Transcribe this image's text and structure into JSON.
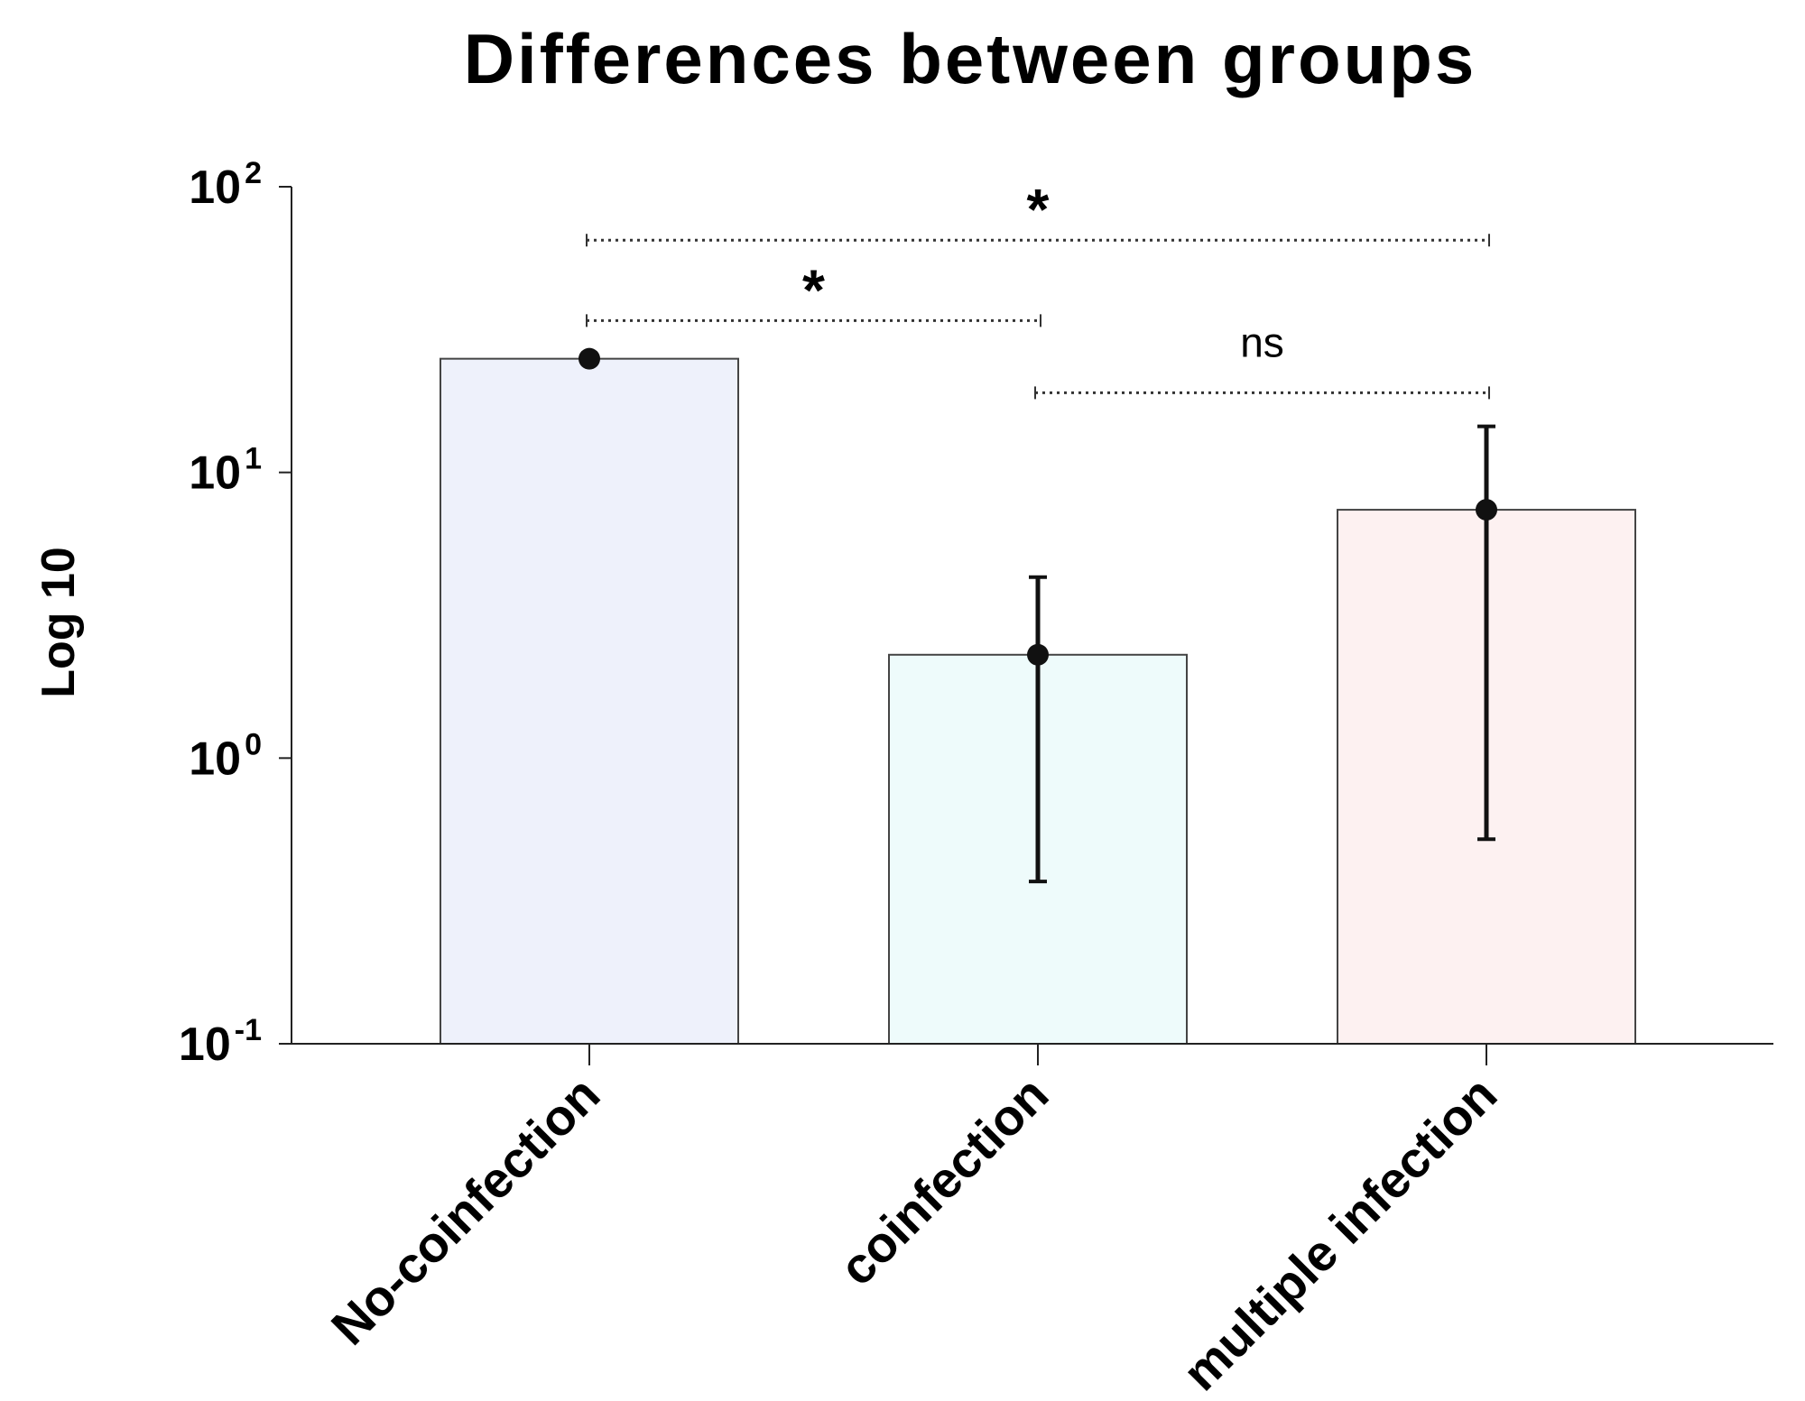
{
  "chart_data": {
    "type": "bar",
    "title": "Differences between groups",
    "ylabel": "Log 10",
    "xlabel": "",
    "yscale": "log",
    "ylim": [
      0.1,
      100
    ],
    "ytick_base": "10",
    "yticks": [
      {
        "value": 0.1,
        "exponent": "-1"
      },
      {
        "value": 1,
        "exponent": "0"
      },
      {
        "value": 10,
        "exponent": "1"
      },
      {
        "value": 100,
        "exponent": "2"
      }
    ],
    "categories": [
      "No-coinfection",
      "coinfection",
      "multiple infection"
    ],
    "values": [
      25,
      2.3,
      7.4
    ],
    "error_low": [
      25,
      0.37,
      0.52
    ],
    "error_high": [
      25,
      4.3,
      14.5
    ],
    "bar_colors": [
      "#eef1fb",
      "#eefbfb",
      "#fdf1f1"
    ],
    "significance": [
      {
        "from": 0,
        "to": 2,
        "label": "*",
        "y": 65
      },
      {
        "from": 0,
        "to": 1,
        "label": "*",
        "y": 34
      },
      {
        "from": 1,
        "to": 2,
        "label": "ns",
        "y": 19
      }
    ]
  }
}
